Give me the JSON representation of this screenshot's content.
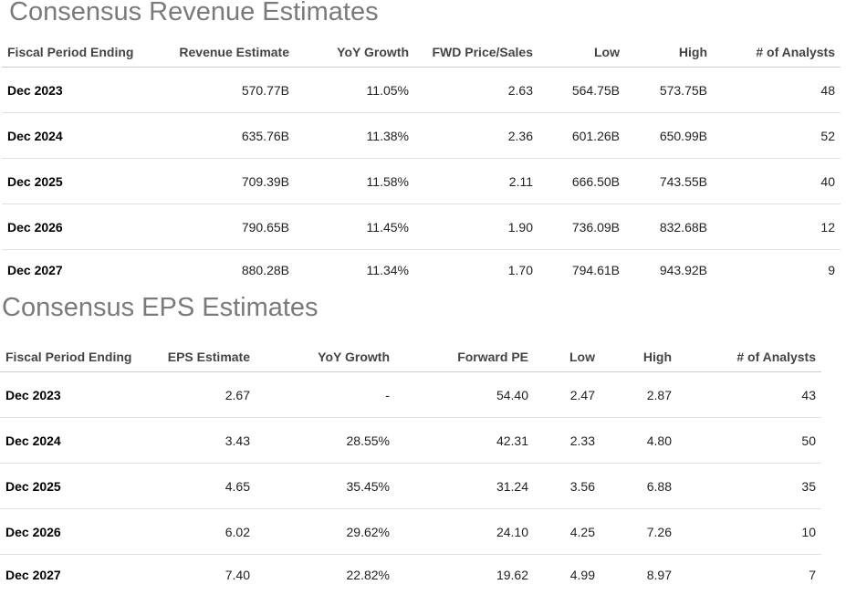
{
  "revenue": {
    "title": "Consensus Revenue Estimates",
    "headers": [
      "Fiscal Period Ending",
      "Revenue Estimate",
      "YoY Growth",
      "FWD Price/Sales",
      "Low",
      "High",
      "# of Analysts"
    ],
    "rows": [
      [
        "Dec 2023",
        "570.77B",
        "11.05%",
        "2.63",
        "564.75B",
        "573.75B",
        "48"
      ],
      [
        "Dec 2024",
        "635.76B",
        "11.38%",
        "2.36",
        "601.26B",
        "650.99B",
        "52"
      ],
      [
        "Dec 2025",
        "709.39B",
        "11.58%",
        "2.11",
        "666.50B",
        "743.55B",
        "40"
      ],
      [
        "Dec 2026",
        "790.65B",
        "11.45%",
        "1.90",
        "736.09B",
        "832.68B",
        "12"
      ],
      [
        "Dec 2027",
        "880.28B",
        "11.34%",
        "1.70",
        "794.61B",
        "943.92B",
        "9"
      ]
    ]
  },
  "eps": {
    "title": "Consensus EPS Estimates",
    "headers": [
      "Fiscal Period Ending",
      "EPS Estimate",
      "YoY Growth",
      "Forward PE",
      "Low",
      "High",
      "# of Analysts"
    ],
    "rows": [
      [
        "Dec 2023",
        "2.67",
        "-",
        "54.40",
        "2.47",
        "2.87",
        "43"
      ],
      [
        "Dec 2024",
        "3.43",
        "28.55%",
        "42.31",
        "2.33",
        "4.80",
        "50"
      ],
      [
        "Dec 2025",
        "4.65",
        "35.45%",
        "31.24",
        "3.56",
        "6.88",
        "35"
      ],
      [
        "Dec 2026",
        "6.02",
        "29.62%",
        "24.10",
        "4.25",
        "7.26",
        "10"
      ],
      [
        "Dec 2027",
        "7.40",
        "22.82%",
        "19.62",
        "4.99",
        "8.97",
        "7"
      ]
    ]
  }
}
